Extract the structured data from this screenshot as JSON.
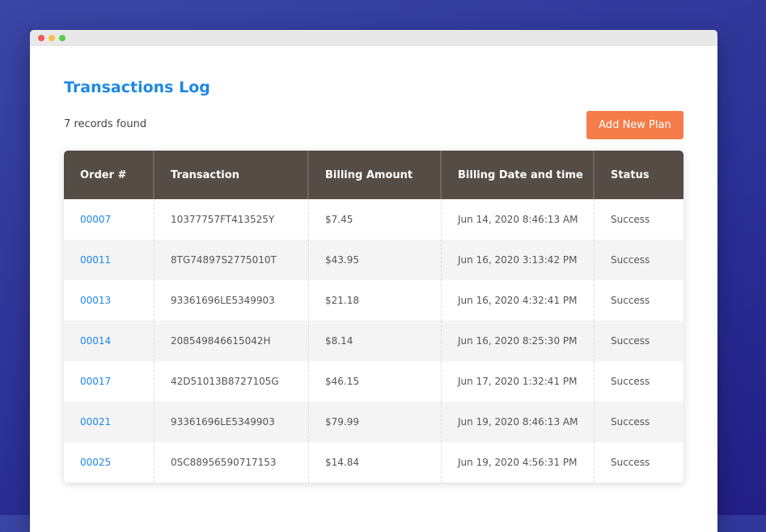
{
  "window": {
    "dots": [
      "#ee5f57",
      "#f7c04a",
      "#5ccc4b"
    ]
  },
  "page": {
    "title": "Transactions Log",
    "records_found": "7 records found",
    "add_button": "Add New Plan"
  },
  "table": {
    "headers": [
      "Order #",
      "Transaction",
      "Billing Amount",
      "Billing Date and time",
      "Status"
    ],
    "rows": [
      [
        "00007",
        "10377757FT413525Y",
        "$7.45",
        "Jun 14, 2020 8:46:13 AM",
        "Success"
      ],
      [
        "00011",
        "8TG74897S2775010T",
        "$43.95",
        "Jun 16, 2020 3:13:42 PM",
        "Success"
      ],
      [
        "00013",
        "93361696LE5349903",
        "$21.18",
        "Jun 16, 2020 4:32:41 PM",
        "Success"
      ],
      [
        "00014",
        "208549846615042H",
        "$8.14",
        "Jun 16, 2020 8:25:30 PM",
        "Success"
      ],
      [
        "00017",
        "42D51013B8727105G",
        "$46.15",
        "Jun 17, 2020 1:32:41 PM",
        "Success"
      ],
      [
        "00021",
        "93361696LE5349903",
        "$79.99",
        "Jun 19, 2020 8:46:13 AM",
        "Success"
      ],
      [
        "00025",
        "0SC88956590717153",
        "$14.84",
        "Jun 19, 2020 4:56:31 PM",
        "Success"
      ]
    ]
  }
}
